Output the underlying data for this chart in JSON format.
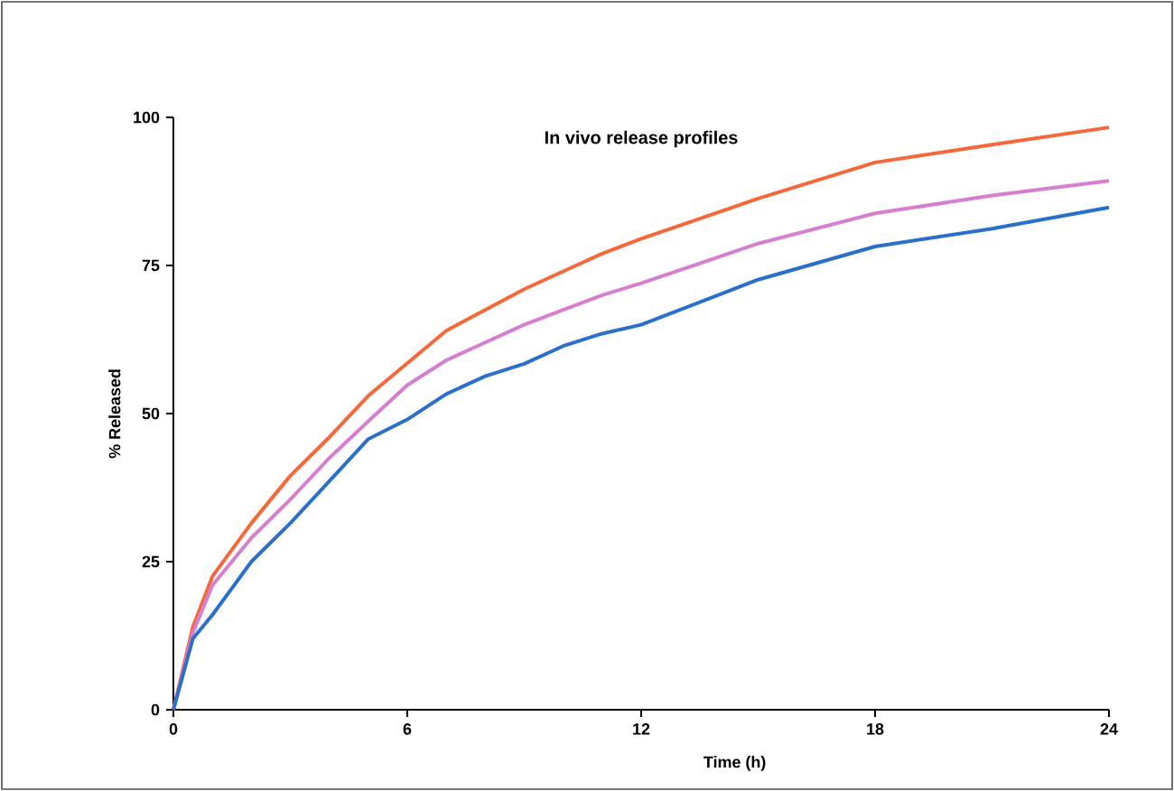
{
  "chart_data": {
    "type": "line",
    "title": "In vivo release profiles",
    "xlabel": "Time (h)",
    "ylabel": "% Released",
    "xlim": [
      0,
      24
    ],
    "xticks": [
      0,
      6,
      12,
      18,
      24
    ],
    "ylim": [
      0,
      100
    ],
    "yticks": [
      0,
      25,
      50,
      75,
      100
    ],
    "marker": "none",
    "line_style": "solid",
    "x": [
      0,
      0.5,
      1,
      2,
      3,
      4,
      5,
      6,
      7,
      8,
      9,
      10,
      11,
      12,
      15,
      18,
      21,
      24
    ],
    "series": [
      {
        "color": "#f4683a",
        "values": [
          0,
          14,
          22.5,
          31.5,
          39.5,
          46,
          53,
          58.5,
          64,
          67.5,
          71,
          74,
          77,
          79.5,
          86.3,
          92.4,
          95.4,
          98.3
        ]
      },
      {
        "color": "#d67fd0",
        "values": [
          0,
          13,
          21,
          29,
          35.5,
          42.5,
          48.7,
          54.8,
          59,
          62,
          65,
          67.5,
          70,
          72,
          78.7,
          83.8,
          86.8,
          89.3
        ]
      },
      {
        "color": "#2a6fc9",
        "values": [
          0,
          12,
          16,
          25,
          31.5,
          38.6,
          45.7,
          49,
          53.3,
          56.3,
          58.4,
          61.4,
          63.5,
          65,
          72.6,
          78.2,
          81.2,
          84.8
        ]
      }
    ]
  }
}
